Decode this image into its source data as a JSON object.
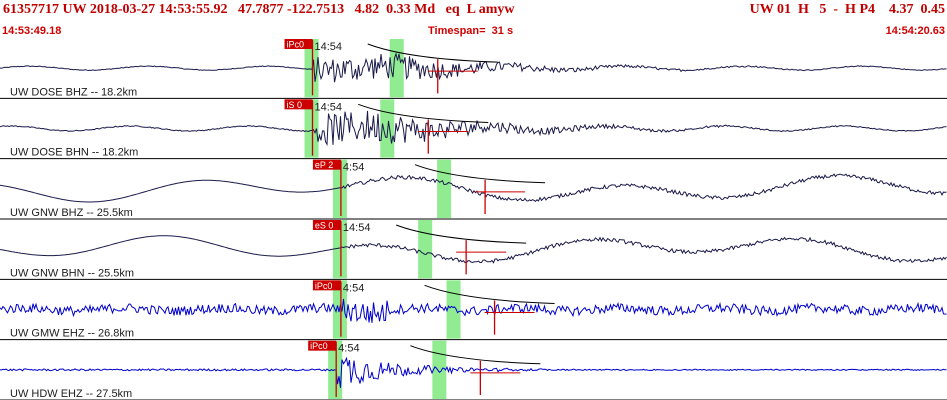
{
  "header": {
    "main": "61357717 UW 2018-03-27 14:53:55.92   47.7877 -122.7513   4.82  0.33 Md   eq  L amyw",
    "right": "UW 01  H   5  -  H P4    4.37  0.45",
    "start_time": "14:53:49.18",
    "timespan": "Timespan=  31 s",
    "end_time": "14:54:20.63"
  },
  "traces": [
    {
      "label": "UW DOSE BHZ -- 18.2km",
      "tick": "14:54",
      "pick": "iPc0",
      "pick_color": "#cc0000",
      "color": "#1a1a4a",
      "style": "low",
      "onset": 0.33,
      "s_arrival": 0.42,
      "amp": 0.6
    },
    {
      "label": "UW DOSE BHN -- 18.2km",
      "tick": "14:54",
      "pick": "iS 0",
      "pick_color": "#cc0000",
      "color": "#1a1a4a",
      "style": "low",
      "onset": 0.33,
      "s_arrival": 0.41,
      "amp": 0.75
    },
    {
      "label": "UW GNW BHZ -- 25.5km",
      "tick": "4:54",
      "pick": "eP 2",
      "pick_color": "#cc0000",
      "color": "#1a1a4a",
      "style": "long",
      "onset": 0.36,
      "s_arrival": 0.47,
      "amp": 0.55
    },
    {
      "label": "UW GNW BHN -- 25.5km",
      "tick": "14:54",
      "pick": "eS 0",
      "pick_color": "#cc0000",
      "color": "#1a1a4a",
      "style": "long",
      "onset": 0.36,
      "s_arrival": 0.45,
      "amp": 0.55
    },
    {
      "label": "UW GMW EHZ -- 26.8km",
      "tick": "4:54",
      "pick": "iPc0",
      "pick_color": "#cc0000",
      "color": "#0000cc",
      "style": "noisy",
      "onset": 0.36,
      "s_arrival": 0.48,
      "amp": 0.7
    },
    {
      "label": "UW HDW EHZ -- 27.5km",
      "tick": "4:54",
      "pick": "iPc0",
      "pick_color": "#cc0000",
      "color": "#0000cc",
      "style": "quiet",
      "onset": 0.355,
      "s_arrival": 0.465,
      "amp": 0.9
    }
  ],
  "colors": {
    "header_text": "#c00000",
    "pick_flag": "#cc0000",
    "window_band": "#7ee87e",
    "theory_curve": "#000000"
  }
}
